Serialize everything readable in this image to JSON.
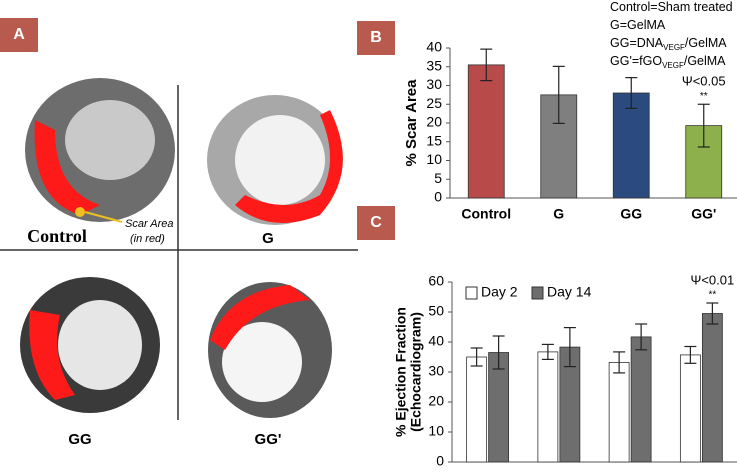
{
  "panels": {
    "A": "A",
    "B": "B",
    "C": "C"
  },
  "images": {
    "labels": [
      "Control",
      "G",
      "GG",
      "GG'"
    ],
    "scar_note": "Scar Area",
    "scar_note_sub": "(in red)"
  },
  "chart_data": [
    {
      "type": "bar",
      "ylabel": "% Scar Area",
      "categories": [
        "Control",
        "G",
        "GG",
        "GG'"
      ],
      "values": [
        35.5,
        27.5,
        28,
        19.3
      ],
      "errors": [
        4.2,
        7.6,
        4.1,
        5.7
      ],
      "colors": [
        "#b84a4a",
        "#7f7f7f",
        "#2b4b7e",
        "#8db04c"
      ],
      "ylim": [
        0,
        40
      ],
      "yticks": [
        0,
        5,
        10,
        15,
        20,
        25,
        30,
        35,
        40
      ],
      "key": [
        [
          "Control=Sham treated"
        ],
        [
          "G=GelMA"
        ],
        [
          "GG=DNA",
          "VEGF",
          "/GelMA"
        ],
        [
          "GG'=fGO",
          "VEGF",
          "/GelMA"
        ]
      ],
      "annotations": [
        "Ψ<0.05",
        "**"
      ]
    },
    {
      "type": "bar",
      "ylabel": [
        "% Ejection Fraction",
        "(Echocardiogram)"
      ],
      "categories": [
        null,
        null,
        null,
        null
      ],
      "series": [
        {
          "name": "Day 2",
          "color": "#ffffff",
          "values": [
            35,
            36.7,
            33.2,
            35.7
          ],
          "errors": [
            3,
            2.5,
            3.5,
            2.8
          ]
        },
        {
          "name": "Day 14",
          "color": "#6e6e6e",
          "values": [
            36.5,
            38.3,
            41.7,
            49.5
          ],
          "errors": [
            5.5,
            6.5,
            4.3,
            3.5
          ]
        }
      ],
      "ylim": [
        0,
        60
      ],
      "yticks": [
        0,
        10,
        20,
        30,
        40,
        50,
        60
      ],
      "annotations": [
        "Ψ<0.01",
        "**"
      ]
    }
  ]
}
